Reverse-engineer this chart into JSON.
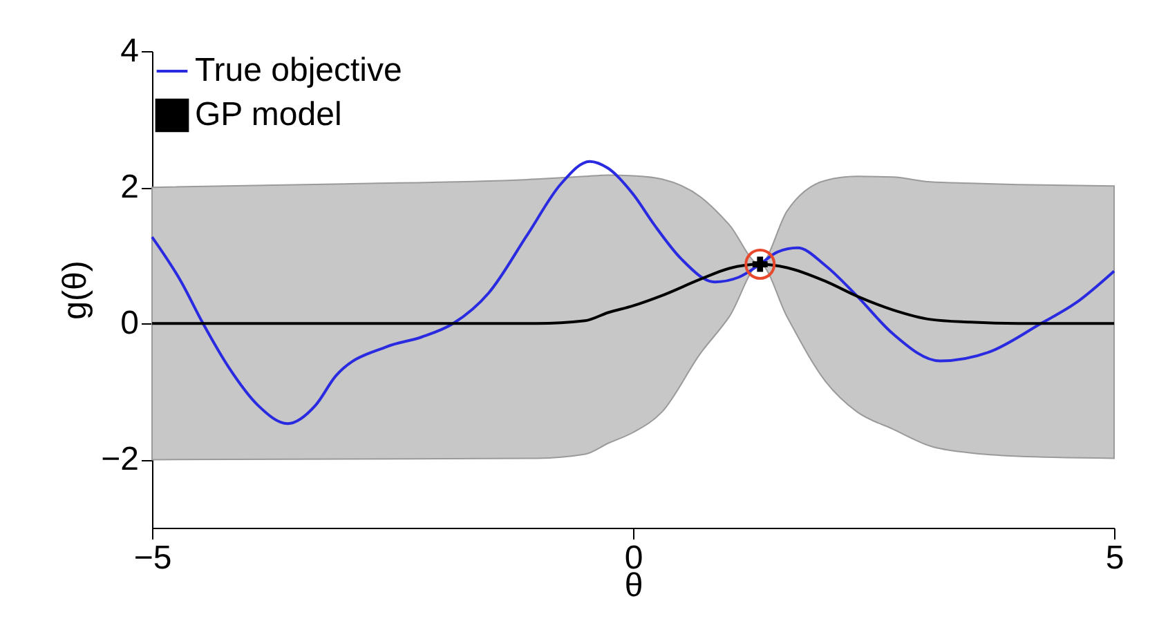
{
  "chart_data": {
    "type": "line",
    "xlabel": "θ",
    "ylabel": "g(θ)",
    "xlim": [
      -5,
      5
    ],
    "xticks": [
      {
        "value": -5,
        "label": "−5"
      },
      {
        "value": 0,
        "label": "0"
      },
      {
        "value": 5,
        "label": "5"
      }
    ],
    "ylim": [
      -3,
      4
    ],
    "yticks": [
      {
        "value": -2,
        "label": "−2"
      },
      0,
      2,
      4
    ],
    "legend": "top left",
    "series": [
      {
        "name": "True objective",
        "color": "#2a2ae0",
        "x": [
          -5,
          -4.7,
          -4.47,
          -4.2,
          -3.9,
          -3.59,
          -3.3,
          -3.09,
          -2.56,
          -2.2,
          -1.87,
          -1.5,
          -1.1,
          -0.75,
          -0.45,
          -0.26,
          0,
          0.22,
          0.5,
          0.85,
          1.1,
          1.32,
          1.5,
          1.71,
          2.0,
          2.33,
          2.7,
          3.19,
          3.7,
          4.24,
          4.6,
          5
        ],
        "values": [
          1.27,
          0.62,
          0,
          -0.65,
          -1.2,
          -1.47,
          -1.2,
          -0.77,
          -0.34,
          -0.2,
          0,
          0.45,
          1.3,
          2.05,
          2.38,
          2.28,
          1.9,
          1.45,
          0.95,
          0.61,
          0.68,
          0.87,
          1.05,
          1.11,
          0.85,
          0.4,
          -0.15,
          -0.55,
          -0.42,
          0,
          0.3,
          0.77
        ]
      },
      {
        "name": "GP model",
        "color": "#000000",
        "x": [
          -5,
          -3,
          -1,
          -0.5,
          -0.26,
          0,
          0.3,
          0.7,
          1.0,
          1.32,
          1.6,
          2.0,
          2.33,
          2.7,
          3.09,
          3.5,
          4,
          5
        ],
        "values": [
          0,
          0,
          0,
          0.04,
          0.16,
          0.26,
          0.41,
          0.65,
          0.81,
          0.87,
          0.82,
          0.62,
          0.4,
          0.2,
          0.06,
          0.02,
          0,
          0
        ],
        "lower": [
          -2,
          -1.99,
          -1.98,
          -1.92,
          -1.76,
          -1.6,
          -1.3,
          -0.44,
          0.1,
          0.87,
          0.1,
          -0.85,
          -1.3,
          -1.55,
          -1.8,
          -1.9,
          -1.95,
          -1.98
        ],
        "upper": [
          2,
          2.05,
          2.12,
          2.16,
          2.18,
          2.17,
          2.12,
          1.86,
          1.45,
          0.87,
          1.65,
          2.1,
          2.16,
          2.15,
          2.08,
          2.06,
          2.04,
          2.02
        ]
      },
      {
        "type": "scatter",
        "marker": "circle",
        "color": "#e8482c",
        "x": [
          1.32
        ],
        "values": [
          0.87
        ]
      },
      {
        "type": "scatter",
        "marker": "cross",
        "color": "#000000",
        "x": [
          1.32
        ],
        "values": [
          0.87
        ]
      }
    ]
  }
}
